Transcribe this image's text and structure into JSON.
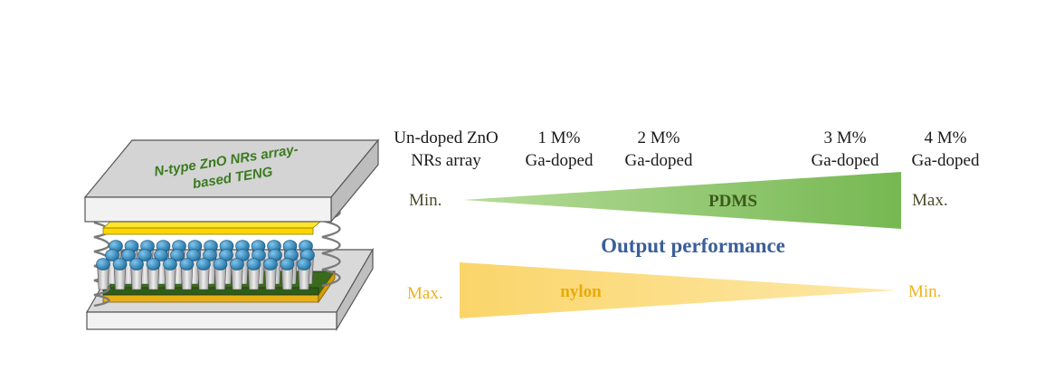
{
  "device": {
    "label_line1": "N-type ZnO NRs array-",
    "label_line2": "based TENG",
    "colors": {
      "plate_top": "#d9d9d9",
      "plate_front": "#f2f2f2",
      "plate_edge": "#555555",
      "label": "#3a7a1e",
      "electrode": "#ffe62e",
      "nanorod_cap": "#2e8fc7",
      "nanorod_body": "#c9c9c9",
      "substrate_green": "#2f5c17",
      "substrate_gold": "#e8b016",
      "spring": "#808080"
    }
  },
  "doping_levels": [
    {
      "line1": "Un-doped ZnO",
      "line2": "NRs array"
    },
    {
      "line1": "1 M%",
      "line2": "Ga-doped"
    },
    {
      "line1": "2 M%",
      "line2": "Ga-doped"
    },
    {
      "line1": "3 M%",
      "line2": "Ga-doped"
    },
    {
      "line1": "4 M%",
      "line2": "Ga-doped"
    }
  ],
  "pdms_wedge": {
    "label": "PDMS",
    "left_label": "Min.",
    "right_label": "Max.",
    "fill": "#76b852",
    "text_color": "#3a5a1a"
  },
  "output": {
    "label": "Output performance",
    "color": "#3b5f98"
  },
  "nylon_wedge": {
    "label": "nylon",
    "left_label": "Max.",
    "right_label": "Min.",
    "fill": "#fad56a",
    "text_color": "#e8a90a"
  }
}
